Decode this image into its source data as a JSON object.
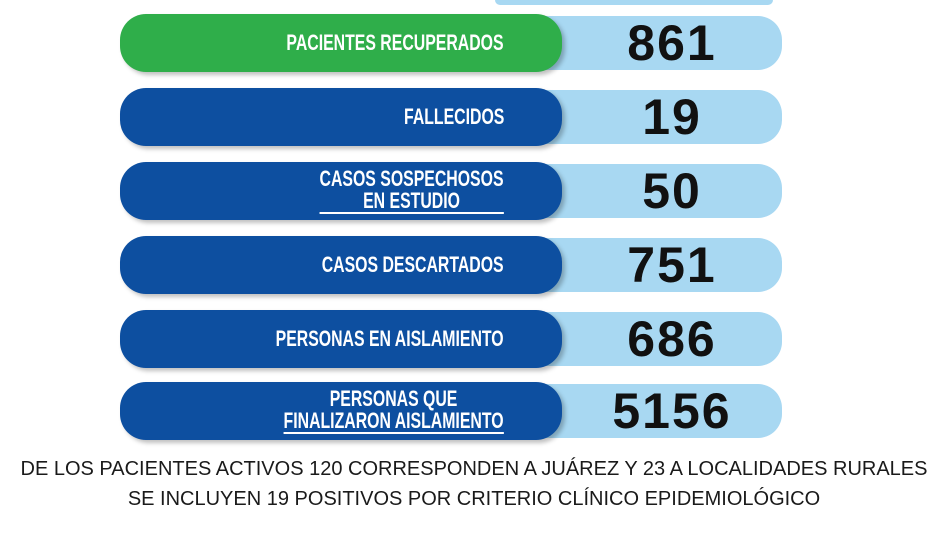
{
  "colors": {
    "label_blue": "#0d4fa0",
    "label_green": "#2fae4a",
    "value_bg": "#a8d8f2",
    "value_text": "#111111"
  },
  "stats": [
    {
      "label_line1": "PACIENTES RECUPERADOS",
      "label_line2": "",
      "value": "861",
      "accent": "green"
    },
    {
      "label_line1": "FALLECIDOS",
      "label_line2": "",
      "value": "19",
      "accent": "blue"
    },
    {
      "label_line1": "CASOS SOSPECHOSOS",
      "label_line2": "EN ESTUDIO",
      "value": "50",
      "accent": "blue"
    },
    {
      "label_line1": "CASOS DESCARTADOS",
      "label_line2": "",
      "value": "751",
      "accent": "blue"
    },
    {
      "label_line1": "PERSONAS EN AISLAMIENTO",
      "label_line2": "",
      "value": "686",
      "accent": "blue"
    },
    {
      "label_line1": "PERSONAS QUE",
      "label_line2": "FINALIZARON AISLAMIENTO",
      "value": "5156",
      "accent": "blue"
    }
  ],
  "footnotes": [
    "DE LOS PACIENTES ACTIVOS 120 CORRESPONDEN A JUÁREZ Y 23 A LOCALIDADES RURALES",
    "SE INCLUYEN 19 POSITIVOS  POR  CRITERIO CLÍNICO EPIDEMIOLÓGICO"
  ]
}
